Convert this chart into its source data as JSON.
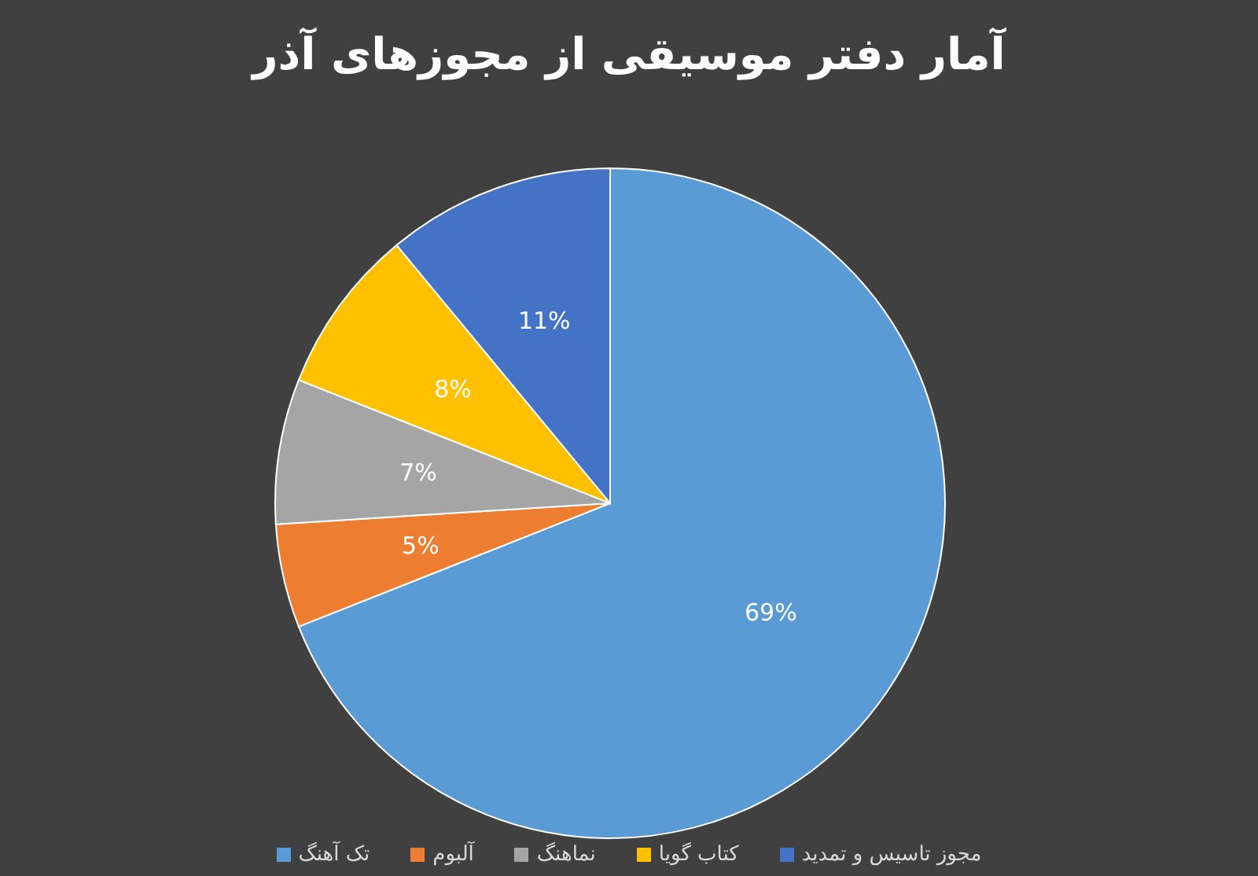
{
  "chart_data": {
    "type": "pie",
    "title": "آمار دفتر موسیقی از مجوزهای آذر",
    "categories": [
      "تک آهنگ",
      "آلبوم",
      "نماهنگ",
      "کتاب گویا",
      "مجوز تاسیس و تمدید"
    ],
    "values": [
      69,
      5,
      7,
      8,
      11
    ],
    "value_labels": [
      "69%",
      "5%",
      "7%",
      "8%",
      "11%"
    ],
    "colors": [
      "#5b9bd5",
      "#ed7d31",
      "#a5a5a5",
      "#ffc000",
      "#4472c4"
    ],
    "legend": "bottom"
  }
}
